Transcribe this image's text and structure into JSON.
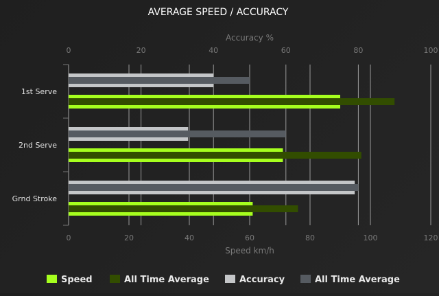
{
  "chart_data": {
    "type": "bar",
    "orientation": "horizontal",
    "title": "AVERAGE SPEED / ACCURACY",
    "categories": [
      "1st Serve",
      "2nd Serve",
      "Grnd Stroke"
    ],
    "top_axis": {
      "label": "Accuracy %",
      "range": [
        0,
        100
      ],
      "ticks": [
        0,
        20,
        40,
        60,
        80,
        100
      ]
    },
    "bottom_axis": {
      "label": "Speed km/h",
      "range": [
        0,
        120
      ],
      "ticks": [
        0,
        20,
        40,
        60,
        80,
        100,
        120
      ]
    },
    "grid": true,
    "legend_placement": "bottom",
    "series": [
      {
        "name": "Speed",
        "axis": "bottom",
        "color": "#a6ff1e",
        "values": [
          90,
          71,
          61
        ]
      },
      {
        "name": "All Time Average",
        "axis": "bottom",
        "color": "#324d00",
        "values": [
          108,
          97,
          76
        ]
      },
      {
        "name": "Accuracy",
        "axis": "top",
        "color": "#c4c6c8",
        "values": [
          40,
          33,
          79
        ]
      },
      {
        "name": "All Time Average",
        "axis": "top",
        "color": "#565b61",
        "values": [
          50,
          60,
          80
        ]
      }
    ]
  }
}
